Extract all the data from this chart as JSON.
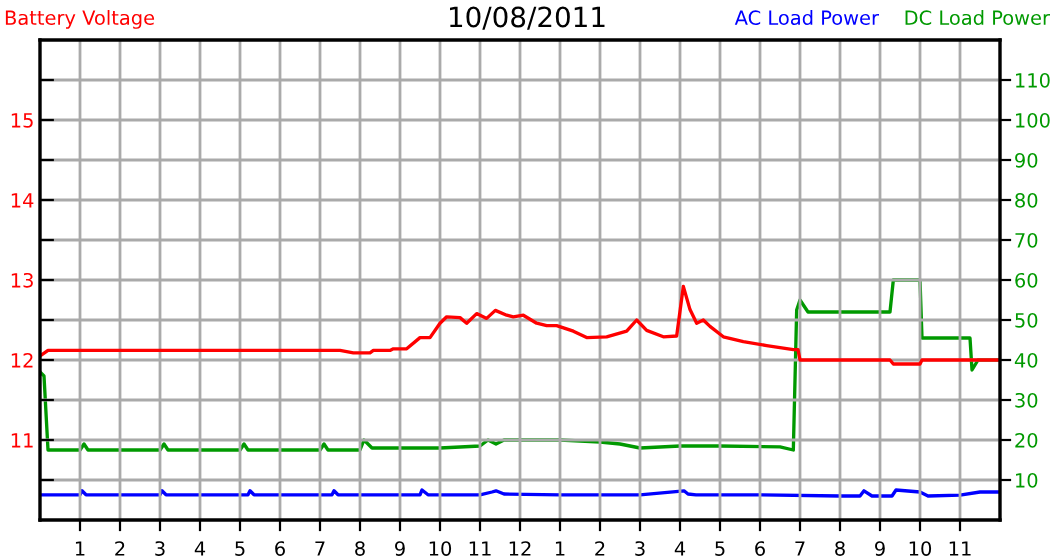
{
  "chart_data": {
    "type": "line",
    "title": "10/08/2011",
    "legend": "top",
    "grid": true,
    "xlim": [
      "2011-10-08T00:00",
      "2011-10-09T00:00"
    ],
    "ylim": [
      10,
      16
    ],
    "y2lim": [
      0,
      120
    ],
    "xticks": [
      {
        "value": "2011-10-08T01:00",
        "label": "1"
      },
      {
        "value": "2011-10-08T02:00",
        "label": "2"
      },
      {
        "value": "2011-10-08T03:00",
        "label": "3"
      },
      {
        "value": "2011-10-08T04:00",
        "label": "4"
      },
      {
        "value": "2011-10-08T05:00",
        "label": "5"
      },
      {
        "value": "2011-10-08T06:00",
        "label": "6"
      },
      {
        "value": "2011-10-08T07:00",
        "label": "7"
      },
      {
        "value": "2011-10-08T08:00",
        "label": "8"
      },
      {
        "value": "2011-10-08T09:00",
        "label": "9"
      },
      {
        "value": "2011-10-08T10:00",
        "label": "10"
      },
      {
        "value": "2011-10-08T11:00",
        "label": "11"
      },
      {
        "value": "2011-10-08T12:00",
        "label": "12"
      },
      {
        "value": "2011-10-08T13:00",
        "label": "1"
      },
      {
        "value": "2011-10-08T14:00",
        "label": "2"
      },
      {
        "value": "2011-10-08T15:00",
        "label": "3"
      },
      {
        "value": "2011-10-08T16:00",
        "label": "4"
      },
      {
        "value": "2011-10-08T17:00",
        "label": "5"
      },
      {
        "value": "2011-10-08T18:00",
        "label": "6"
      },
      {
        "value": "2011-10-08T19:00",
        "label": "7"
      },
      {
        "value": "2011-10-08T20:00",
        "label": "8"
      },
      {
        "value": "2011-10-08T21:00",
        "label": "9"
      },
      {
        "value": "2011-10-08T22:00",
        "label": "10"
      },
      {
        "value": "2011-10-08T23:00",
        "label": "11"
      }
    ],
    "yticks": [
      {
        "value": 10.5,
        "label": null
      },
      11,
      {
        "value": 11.5,
        "label": null
      },
      12,
      {
        "value": 12.5,
        "label": null
      },
      13,
      {
        "value": 13.5,
        "label": null
      },
      14,
      {
        "value": 14.5,
        "label": null
      },
      15,
      {
        "value": 15.5,
        "label": null
      }
    ],
    "y2ticks": [
      10,
      20,
      30,
      40,
      50,
      60,
      70,
      80,
      90,
      100,
      110
    ],
    "series": [
      {
        "name": "Battery Voltage",
        "color": "#ff0000",
        "x": [
          "2011-10-08T00:00",
          "2011-10-08T00:12",
          "2011-10-08T07:15",
          "2011-10-08T07:30",
          "2011-10-08T07:50",
          "2011-10-08T08:15",
          "2011-10-08T08:20",
          "2011-10-08T08:45",
          "2011-10-08T08:50",
          "2011-10-08T09:10",
          "2011-10-08T09:30",
          "2011-10-08T09:45",
          "2011-10-08T10:00",
          "2011-10-08T10:10",
          "2011-10-08T10:30",
          "2011-10-08T10:40",
          "2011-10-08T10:55",
          "2011-10-08T11:10",
          "2011-10-08T11:23",
          "2011-10-08T11:40",
          "2011-10-08T11:50",
          "2011-10-08T12:05",
          "2011-10-08T12:25",
          "2011-10-08T12:40",
          "2011-10-08T12:55",
          "2011-10-08T13:20",
          "2011-10-08T13:40",
          "2011-10-08T14:10",
          "2011-10-08T14:40",
          "2011-10-08T14:55",
          "2011-10-08T15:10",
          "2011-10-08T15:35",
          "2011-10-08T15:55",
          "2011-10-08T16:05",
          "2011-10-08T16:15",
          "2011-10-08T16:25",
          "2011-10-08T16:35",
          "2011-10-08T16:45",
          "2011-10-08T17:05",
          "2011-10-08T17:35",
          "2011-10-08T18:10",
          "2011-10-08T18:50",
          "2011-10-08T18:57",
          "2011-10-08T19:00",
          "2011-10-08T21:15",
          "2011-10-08T21:20",
          "2011-10-08T22:00",
          "2011-10-08T22:03",
          "2011-10-09T00:00"
        ],
        "values": [
          12.05,
          12.12,
          12.12,
          12.12,
          12.09,
          12.09,
          12.12,
          12.12,
          12.14,
          12.14,
          12.28,
          12.28,
          12.46,
          12.54,
          12.53,
          12.46,
          12.58,
          12.52,
          12.62,
          12.56,
          12.54,
          12.56,
          12.46,
          12.43,
          12.43,
          12.36,
          12.28,
          12.29,
          12.36,
          12.5,
          12.37,
          12.29,
          12.3,
          12.92,
          12.63,
          12.46,
          12.5,
          12.42,
          12.29,
          12.23,
          12.18,
          12.13,
          12.13,
          12.0,
          12.0,
          11.95,
          11.95,
          12.0,
          12.0
        ]
      },
      {
        "name": "AC Load Power",
        "color": "#0000ff",
        "axis": "y2",
        "x": [
          "2011-10-08T00:00",
          "2011-10-08T01:00",
          "2011-10-08T01:03",
          "2011-10-08T01:09",
          "2011-10-08T03:00",
          "2011-10-08T03:03",
          "2011-10-08T03:09",
          "2011-10-08T05:12",
          "2011-10-08T05:15",
          "2011-10-08T05:21",
          "2011-10-08T07:18",
          "2011-10-08T07:21",
          "2011-10-08T07:27",
          "2011-10-08T09:30",
          "2011-10-08T09:33",
          "2011-10-08T09:42",
          "2011-10-08T11:00",
          "2011-10-08T11:18",
          "2011-10-08T11:24",
          "2011-10-08T11:36",
          "2011-10-08T13:00",
          "2011-10-08T15:00",
          "2011-10-08T16:06",
          "2011-10-08T16:12",
          "2011-10-08T16:24",
          "2011-10-08T18:00",
          "2011-10-08T20:00",
          "2011-10-08T20:30",
          "2011-10-08T20:36",
          "2011-10-08T20:48",
          "2011-10-08T21:18",
          "2011-10-08T21:24",
          "2011-10-08T22:00",
          "2011-10-08T22:12",
          "2011-10-08T23:00",
          "2011-10-08T23:30",
          "2011-10-09T00:00"
        ],
        "values": [
          6.3,
          6.3,
          7.3,
          6.3,
          6.3,
          7.3,
          6.3,
          6.3,
          7.3,
          6.3,
          6.3,
          7.3,
          6.3,
          6.3,
          7.5,
          6.3,
          6.3,
          7,
          7.3,
          6.5,
          6.3,
          6.3,
          7.3,
          6.5,
          6.3,
          6.3,
          6,
          6,
          7.3,
          6,
          6,
          7.5,
          7,
          6,
          6.2,
          7,
          7
        ]
      },
      {
        "name": "DC Load Power",
        "color": "#009900",
        "axis": "y2",
        "x": [
          "2011-10-08T00:00",
          "2011-10-08T00:06",
          "2011-10-08T00:12",
          "2011-10-08T00:18",
          "2011-10-08T01:00",
          "2011-10-08T01:06",
          "2011-10-08T01:12",
          "2011-10-08T03:00",
          "2011-10-08T03:06",
          "2011-10-08T03:12",
          "2011-10-08T05:00",
          "2011-10-08T05:06",
          "2011-10-08T05:12",
          "2011-10-08T07:00",
          "2011-10-08T07:06",
          "2011-10-08T07:12",
          "2011-10-08T08:00",
          "2011-10-08T08:06",
          "2011-10-08T08:18",
          "2011-10-08T10:00",
          "2011-10-08T11:00",
          "2011-10-08T11:12",
          "2011-10-08T11:24",
          "2011-10-08T11:36",
          "2011-10-08T12:00",
          "2011-10-08T13:00",
          "2011-10-08T14:00",
          "2011-10-08T14:30",
          "2011-10-08T15:00",
          "2011-10-08T16:00",
          "2011-10-08T17:00",
          "2011-10-08T18:30",
          "2011-10-08T18:50",
          "2011-10-08T18:55",
          "2011-10-08T19:00",
          "2011-10-08T19:12",
          "2011-10-08T21:15",
          "2011-10-08T21:20",
          "2011-10-08T22:00",
          "2011-10-08T22:03",
          "2011-10-08T23:15",
          "2011-10-08T23:18",
          "2011-10-08T23:27",
          "2011-10-09T00:00"
        ],
        "values": [
          37,
          36,
          17.5,
          17.5,
          17.5,
          19,
          17.5,
          17.5,
          19,
          17.5,
          17.5,
          19,
          17.5,
          17.5,
          19,
          17.5,
          17.5,
          20,
          18,
          18,
          18.5,
          20,
          19,
          20,
          20,
          20,
          19.5,
          19,
          18,
          18.5,
          18.5,
          18.3,
          17.5,
          52.5,
          55,
          52,
          52,
          60,
          60,
          45.5,
          45.5,
          37.5,
          40,
          40
        ]
      }
    ]
  }
}
